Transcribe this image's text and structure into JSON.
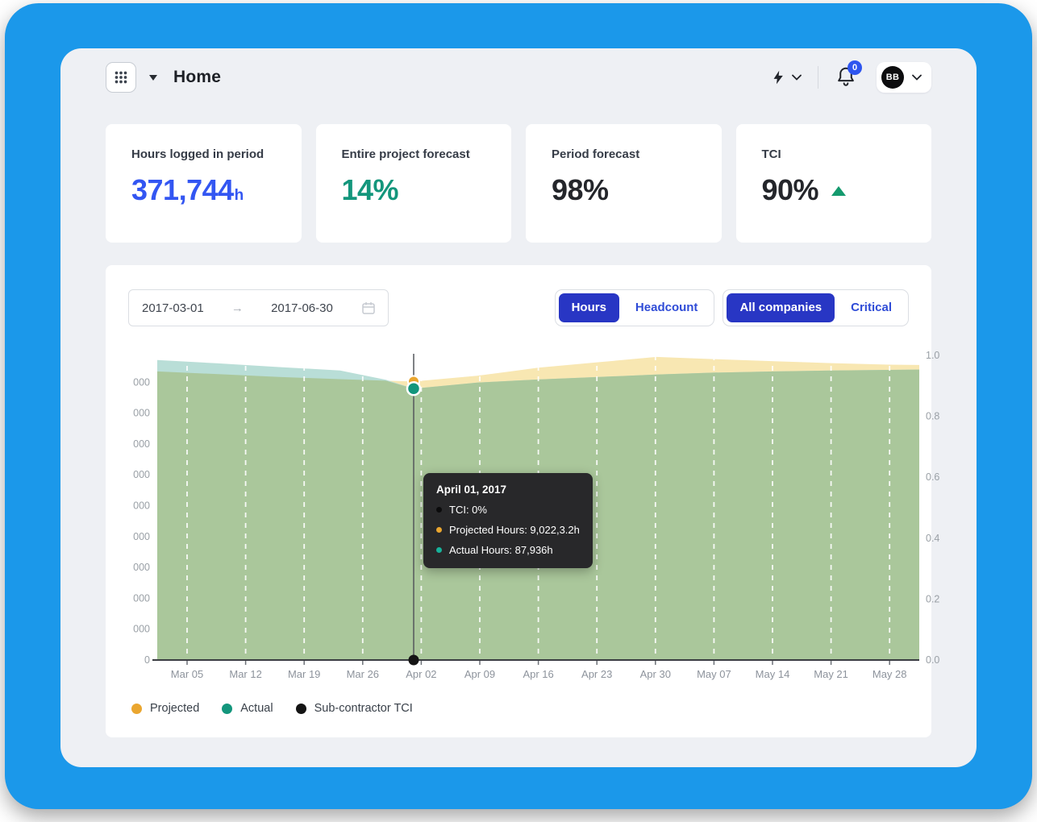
{
  "header": {
    "app_title": "Home",
    "notification_badge": "0",
    "avatar_initials": "BB"
  },
  "stats": [
    {
      "label": "Hours logged in period",
      "value": "371,744",
      "suffix": "h",
      "value_color": "#3356f2"
    },
    {
      "label": "Entire project forecast",
      "value": "14%",
      "suffix": "",
      "value_color": "#13967c"
    },
    {
      "label": "Period forecast",
      "value": "98%",
      "suffix": "",
      "value_color": "#24262b"
    },
    {
      "label": "TCI",
      "value": "90%",
      "suffix": "",
      "value_color": "#24262b",
      "trend": "up",
      "trend_color": "#149a6e"
    }
  ],
  "filters": {
    "date_start": "2017-03-01",
    "date_arrow": "→",
    "date_end": "2017-06-30",
    "view_options": [
      "Hours",
      "Headcount"
    ],
    "view_active": "Hours",
    "company_options": [
      "All companies",
      "Critical"
    ],
    "company_active": "All companies"
  },
  "tooltip": {
    "title": "April 01, 2017",
    "rows": [
      {
        "label": "TCI: 0%",
        "bullet_color": "#0b0b0c"
      },
      {
        "label": "Projected Hours: 9,022,3.2h",
        "bullet_color": "#eaa62f"
      },
      {
        "label": "Actual Hours: 87,936h",
        "bullet_color": "#17b29a"
      }
    ]
  },
  "legend": [
    {
      "label": "Projected",
      "color": "#eaa62f"
    },
    {
      "label": "Actual",
      "color": "#13967c"
    },
    {
      "label": "Sub-contractor TCI",
      "color": "#141414"
    }
  ],
  "chart_data": {
    "type": "area",
    "x_tick_labels": [
      "Mar 05",
      "Mar 12",
      "Mar 19",
      "Mar 26",
      "Apr 02",
      "Apr 09",
      "Apr 16",
      "Apr 23",
      "Apr 30",
      "May 07",
      "May 14",
      "May 21",
      "May 28"
    ],
    "left_axis_tick_labels": [
      "000",
      "000",
      "000",
      "000",
      "000",
      "000",
      "000",
      "000",
      "000",
      "0"
    ],
    "right_axis_tick_labels": [
      "1.0",
      "0.8",
      "0.6",
      "0.4",
      "0.2",
      "0.0"
    ],
    "hours_axis_range": [
      0,
      100000
    ],
    "tci_axis_range": [
      0,
      1
    ],
    "grid": "dashed-vertical-white",
    "overlap_fill": "#aac79b",
    "highlight": {
      "date": "April 01, 2017",
      "x": 0.3365,
      "projected_hours": 90223,
      "actual_hours": 87936,
      "tci": 0
    },
    "series": [
      {
        "name": "Projected",
        "axis": "hours",
        "color": "#eaa62f",
        "fill": "#f8e7b2",
        "points": [
          [
            0,
            93500
          ],
          [
            0.08,
            92600
          ],
          [
            0.16,
            91700
          ],
          [
            0.24,
            91000
          ],
          [
            0.3,
            90500
          ],
          [
            0.3365,
            90223
          ],
          [
            0.42,
            92100
          ],
          [
            0.5,
            94700
          ],
          [
            0.58,
            96500
          ],
          [
            0.655,
            98200
          ],
          [
            0.73,
            97500
          ],
          [
            0.81,
            96800
          ],
          [
            0.885,
            96200
          ],
          [
            0.961,
            95700
          ],
          [
            1,
            95600
          ]
        ]
      },
      {
        "name": "Actual",
        "axis": "hours",
        "color": "#13967c",
        "fill": "#b9ded7",
        "points": [
          [
            0,
            97200
          ],
          [
            0.08,
            96100
          ],
          [
            0.16,
            94900
          ],
          [
            0.24,
            93800
          ],
          [
            0.3,
            90800
          ],
          [
            0.3365,
            87936
          ],
          [
            0.42,
            89900
          ],
          [
            0.5,
            90900
          ],
          [
            0.58,
            91700
          ],
          [
            0.655,
            92500
          ],
          [
            0.73,
            93100
          ],
          [
            0.81,
            93500
          ],
          [
            0.885,
            93800
          ],
          [
            0.961,
            94000
          ],
          [
            1,
            94100
          ]
        ]
      },
      {
        "name": "Sub-contractor TCI",
        "axis": "tci",
        "color": "#141414",
        "points": [
          [
            0.3365,
            0
          ]
        ]
      }
    ]
  }
}
